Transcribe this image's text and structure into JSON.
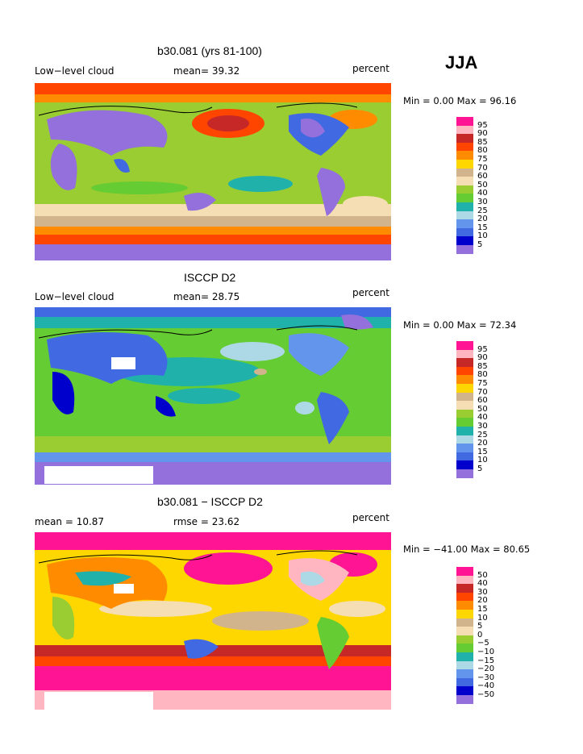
{
  "season": "JJA",
  "panels": [
    {
      "title": "b30.081 (yrs 81-100)",
      "left_label": "Low−level cloud",
      "mid_label": "mean=  39.32",
      "units": "percent",
      "min_max": "Min =   0.00 Max =  96.16",
      "legend_labels": [
        "95",
        "90",
        "85",
        "80",
        "75",
        "70",
        "60",
        "50",
        "40",
        "30",
        "25",
        "20",
        "15",
        "10",
        "5"
      ],
      "legend_colors": [
        "#ff1493",
        "#ffb6c1",
        "#c62828",
        "#ff4500",
        "#ff8c00",
        "#ffd700",
        "#d2b48c",
        "#f5deb3",
        "#9acd32",
        "#66cc33",
        "#20b2aa",
        "#add8e6",
        "#6495ed",
        "#4169e1",
        "#0000cd",
        "#9370db"
      ]
    },
    {
      "title": "ISCCP D2",
      "left_label": "Low−level cloud",
      "mid_label": "mean=  28.75",
      "units": "percent",
      "min_max": "Min =   0.00 Max =  72.34",
      "legend_labels": [
        "95",
        "90",
        "85",
        "80",
        "75",
        "70",
        "60",
        "50",
        "40",
        "30",
        "25",
        "20",
        "15",
        "10",
        "5"
      ],
      "legend_colors": [
        "#ff1493",
        "#ffb6c1",
        "#c62828",
        "#ff4500",
        "#ff8c00",
        "#ffd700",
        "#d2b48c",
        "#f5deb3",
        "#9acd32",
        "#66cc33",
        "#20b2aa",
        "#add8e6",
        "#6495ed",
        "#4169e1",
        "#0000cd",
        "#9370db"
      ]
    },
    {
      "title": "b30.081 − ISCCP D2",
      "left_label": "mean =  10.87",
      "mid_label": "rmse =  23.62",
      "units": "percent",
      "min_max": "Min = −41.00 Max =  80.65",
      "legend_labels": [
        "50",
        "40",
        "30",
        "20",
        "15",
        "10",
        "5",
        "0",
        "−5",
        "−10",
        "−15",
        "−20",
        "−30",
        "−40",
        "−50"
      ],
      "legend_colors": [
        "#ff1493",
        "#ffb6c1",
        "#c62828",
        "#ff4500",
        "#ff8c00",
        "#ffd700",
        "#d2b48c",
        "#f5deb3",
        "#9acd32",
        "#66cc33",
        "#20b2aa",
        "#add8e6",
        "#6495ed",
        "#4169e1",
        "#0000cd",
        "#9370db"
      ]
    }
  ],
  "colors": {
    "ocean1_base": "#9acd32",
    "ocean2_base": "#66cc33",
    "diff_base": "#ffd700",
    "land_low": "#9370db",
    "land_blue": "#4169e1",
    "pink": "#ff1493",
    "red": "#c62828",
    "orange": "#ff8c00",
    "tan": "#f5deb3",
    "teal": "#20b2aa",
    "missing": "#ffffff"
  }
}
